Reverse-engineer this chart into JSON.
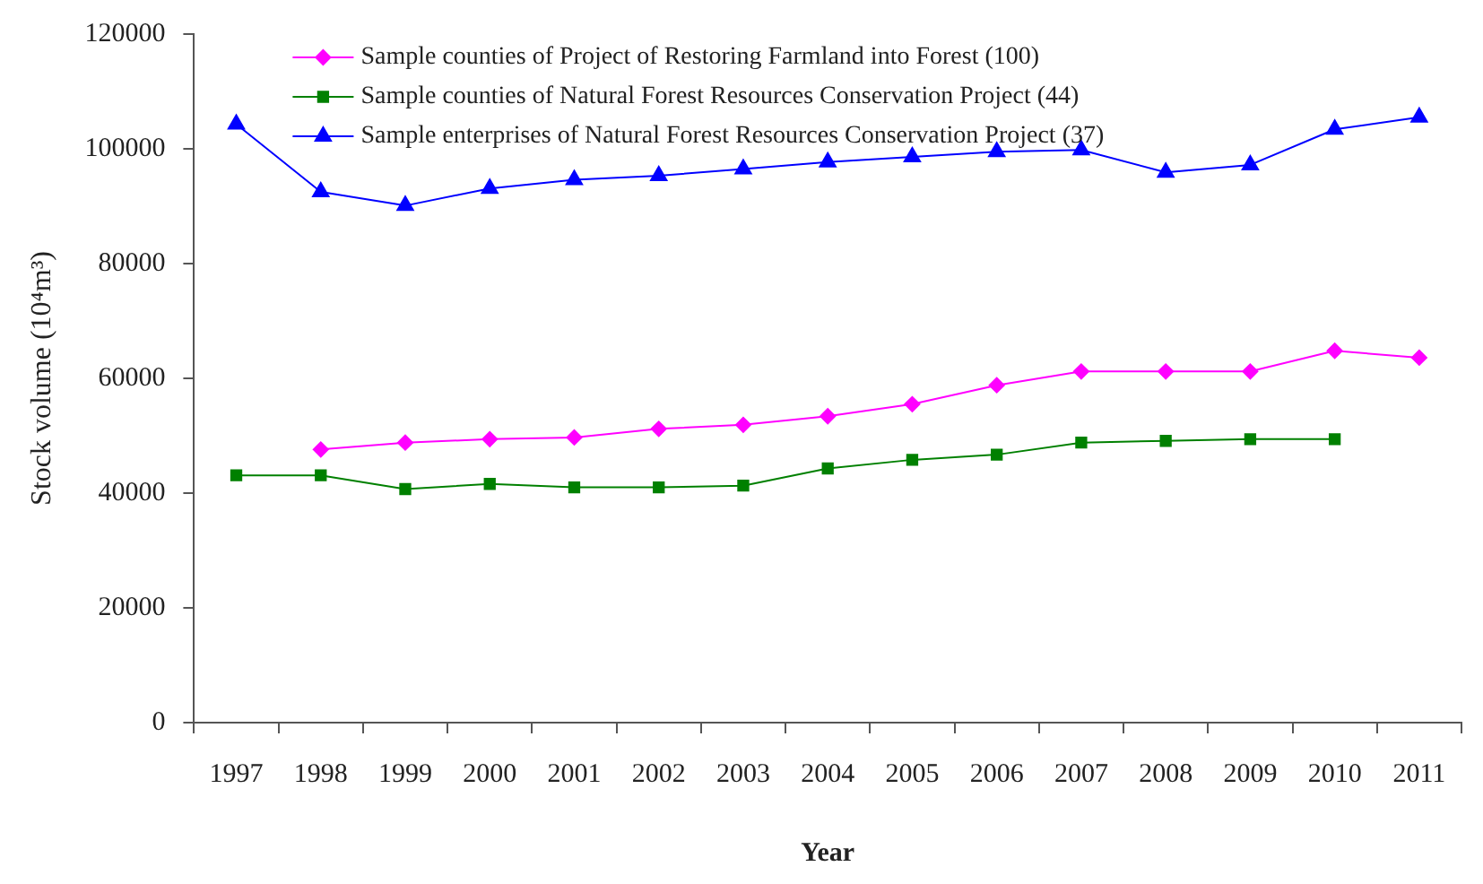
{
  "chart_data": {
    "type": "line",
    "xlabel": "Year",
    "ylabel": "Stock volume (10⁴m³)",
    "categories": [
      "1997",
      "1998",
      "1999",
      "2000",
      "2001",
      "2002",
      "2003",
      "2004",
      "2005",
      "2006",
      "2007",
      "2008",
      "2009",
      "2010",
      "2011"
    ],
    "series": [
      {
        "name": "Sample counties of Project of Restoring Farmland into Forest (100)",
        "color": "#ff00ff",
        "marker": "diamond",
        "values": [
          null,
          47600,
          48800,
          49400,
          49700,
          51200,
          51900,
          53400,
          55500,
          58800,
          61200,
          61200,
          61200,
          64800,
          63600
        ]
      },
      {
        "name": "Sample counties of Natural Forest Resources Conservation Project (44)",
        "color": "#008000",
        "marker": "square",
        "values": [
          43100,
          43100,
          40700,
          41600,
          41000,
          41000,
          41300,
          44300,
          45800,
          46700,
          48800,
          49100,
          49400,
          49400,
          null
        ]
      },
      {
        "name": "Sample enterprises of Natural Forest Resources Conservation Project (37)",
        "color": "#0000ff",
        "marker": "triangle",
        "values": [
          104300,
          92500,
          90100,
          93100,
          94600,
          95300,
          96500,
          97700,
          98600,
          99500,
          99800,
          95900,
          97200,
          103400,
          105500
        ]
      }
    ],
    "ylim": [
      0,
      120000
    ],
    "yticks": [
      0,
      20000,
      40000,
      60000,
      80000,
      100000,
      120000
    ],
    "grid": false,
    "legend": "top"
  }
}
